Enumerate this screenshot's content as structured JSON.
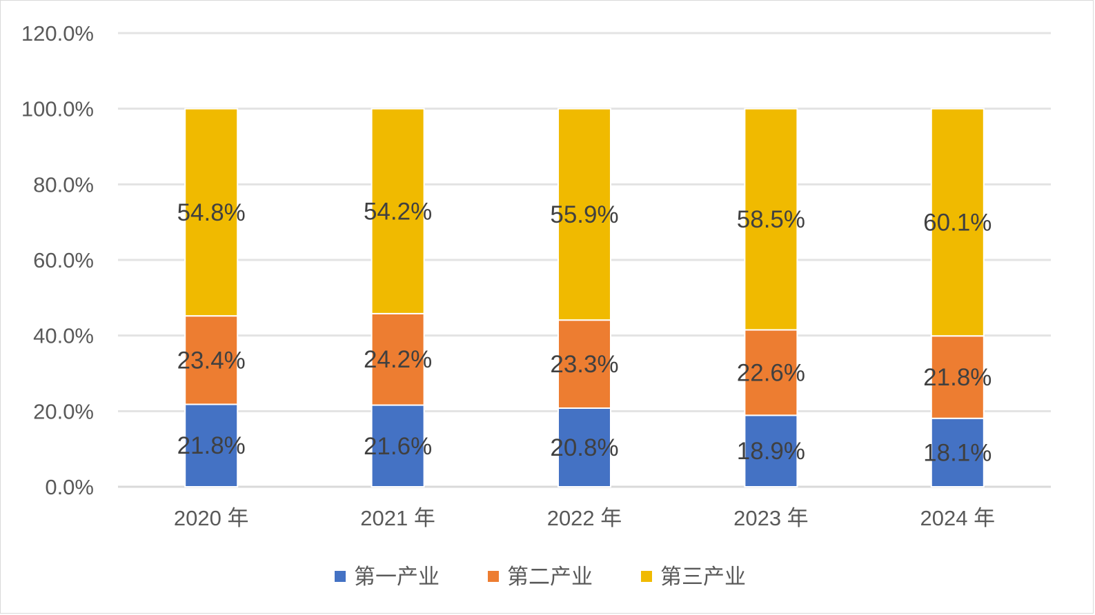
{
  "chart_data": {
    "type": "bar",
    "stacked": true,
    "categories": [
      "2020 年",
      "2021 年",
      "2022 年",
      "2023 年",
      "2024 年"
    ],
    "series": [
      {
        "name": "第一产业",
        "values": [
          21.8,
          21.6,
          20.8,
          18.9,
          18.1
        ],
        "labels": [
          "21.8%",
          "21.6%",
          "20.8%",
          "18.9%",
          "18.1%"
        ],
        "color": "#4472C4"
      },
      {
        "name": "第二产业",
        "values": [
          23.4,
          24.2,
          23.3,
          22.6,
          21.8
        ],
        "labels": [
          "23.4%",
          "24.2%",
          "23.3%",
          "22.6%",
          "21.8%"
        ],
        "color": "#ED7D31"
      },
      {
        "name": "第三产业",
        "values": [
          54.8,
          54.2,
          55.9,
          58.5,
          60.1
        ],
        "labels": [
          "54.8%",
          "54.2%",
          "55.9%",
          "58.5%",
          "60.1%"
        ],
        "color": "#F0BA00"
      }
    ],
    "y_ticks": [
      0,
      20,
      40,
      60,
      80,
      100,
      120
    ],
    "y_tick_labels": [
      "0.0%",
      "20.0%",
      "40.0%",
      "60.0%",
      "80.0%",
      "100.0%",
      "120.0%"
    ],
    "ylim": [
      0,
      120
    ],
    "grid": true,
    "legend_position": "bottom",
    "title": "",
    "xlabel": "",
    "ylabel": ""
  }
}
